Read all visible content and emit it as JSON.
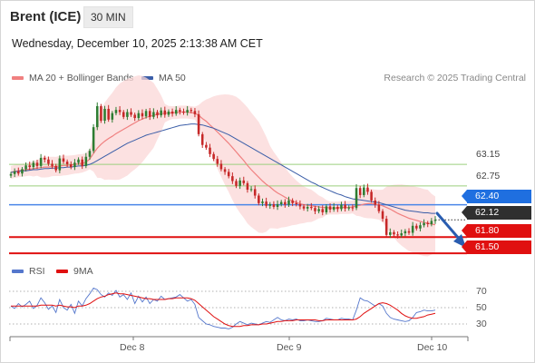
{
  "header": {
    "title": "Brent (ICE)",
    "timeframe": "30 MIN",
    "datetime": "Wednesday, December 10, 2025 2:13:38 AM CET",
    "credit": "Research © 2025 Trading Central"
  },
  "legend": {
    "ma20": "MA 20 + Bollinger Bands",
    "ma50": "MA 50",
    "rsi": "RSI",
    "ma9": "9MA"
  },
  "colors": {
    "ma20": "#f08080",
    "ma50": "#3b5ea8",
    "bands": "#fbd7d7",
    "bull": "#2e7d32",
    "bear": "#c62828",
    "resistance": "#9ccf7e",
    "pivot": "#4a86e8",
    "support": "#e01010",
    "current": "#333333",
    "rsi": "#5577cc",
    "rsi_ma": "#e01010",
    "arrow": "#2a5db0"
  },
  "levels": {
    "r2": "63.15",
    "r1": "62.75",
    "pivot": "62.40",
    "current": "62.12",
    "s1": "61.80",
    "s2": "61.50"
  },
  "chart_data": [
    {
      "type": "candlestick",
      "title": "Brent (ICE) 30 MIN",
      "x_ticks": [
        "Dec 8",
        "Dec 9",
        "Dec 10"
      ],
      "ylim": [
        61.4,
        64.6
      ],
      "series": [
        {
          "name": "Brent (ICE)",
          "close": [
            62.97,
            63.02,
            62.98,
            63.06,
            63.13,
            63.1,
            63.18,
            63.12,
            63.27,
            63.24,
            63.16,
            63.12,
            63.04,
            63.26,
            63.2,
            63.15,
            63.1,
            63.18,
            63.24,
            63.12,
            63.29,
            63.4,
            63.84,
            64.23,
            63.96,
            64.18,
            63.98,
            64.1,
            64.16,
            64.12,
            64.03,
            64.12,
            64.07,
            64.01,
            64.1,
            64.04,
            64.14,
            64.03,
            64.12,
            64.06,
            64.15,
            64.07,
            64.13,
            64.09,
            64.16,
            64.13,
            64.11,
            64.16,
            64.14,
            64.08,
            63.71,
            63.51,
            63.46,
            63.34,
            63.25,
            63.16,
            63.06,
            63.01,
            62.93,
            62.84,
            62.75,
            62.85,
            62.8,
            62.68,
            62.69,
            62.57,
            62.43,
            62.46,
            62.38,
            62.41,
            62.36,
            62.41,
            62.45,
            62.4,
            62.48,
            62.43,
            62.41,
            62.37,
            62.33,
            62.36,
            62.34,
            62.28,
            62.32,
            62.26,
            62.37,
            62.31,
            62.36,
            62.32,
            62.4,
            62.33,
            62.35,
            62.34,
            62.71,
            62.58,
            62.72,
            62.64,
            62.48,
            62.4,
            62.28,
            62.14,
            61.84,
            61.89,
            61.85,
            61.83,
            61.87,
            61.91,
            61.88,
            62.01,
            61.96,
            62.02,
            62.06,
            62.04,
            62.1,
            62.12
          ]
        },
        {
          "name": "MA 20",
          "values": [
            63.0,
            63.02,
            63.03,
            63.04,
            63.05,
            63.06,
            63.07,
            63.08,
            63.09,
            63.1,
            63.1,
            63.11,
            63.11,
            63.12,
            63.13,
            63.13,
            63.14,
            63.15,
            63.16,
            63.17,
            63.19,
            63.25,
            63.35,
            63.45,
            63.52,
            63.58,
            63.63,
            63.67,
            63.72,
            63.76,
            63.8,
            63.84,
            63.88,
            63.92,
            63.96,
            63.99,
            64.02,
            64.04,
            64.06,
            64.08,
            64.09,
            64.1,
            64.1,
            64.11,
            64.11,
            64.12,
            64.12,
            64.12,
            64.11,
            64.1,
            64.06,
            64.0,
            63.95,
            63.88,
            63.82,
            63.75,
            63.68,
            63.61,
            63.54,
            63.46,
            63.38,
            63.3,
            63.22,
            63.13,
            63.05,
            62.98,
            62.91,
            62.84,
            62.78,
            62.73,
            62.67,
            62.62,
            62.58,
            62.54,
            62.5,
            62.47,
            62.44,
            62.42,
            62.4,
            62.39,
            62.38,
            62.37,
            62.36,
            62.35,
            62.35,
            62.34,
            62.34,
            62.34,
            62.35,
            62.35,
            62.35,
            62.36,
            62.38,
            62.39,
            62.41,
            62.42,
            62.42,
            62.41,
            62.4,
            62.38,
            62.35,
            62.32,
            62.28,
            62.24,
            62.21,
            62.18,
            62.15,
            62.13,
            62.11,
            62.09,
            62.07,
            62.06,
            62.04,
            62.03
          ]
        },
        {
          "name": "MA 50",
          "values": [
            63.0,
            63.01,
            63.02,
            63.03,
            63.03,
            63.04,
            63.05,
            63.05,
            63.06,
            63.07,
            63.07,
            63.08,
            63.08,
            63.09,
            63.09,
            63.1,
            63.1,
            63.11,
            63.12,
            63.12,
            63.13,
            63.15,
            63.18,
            63.22,
            63.26,
            63.3,
            63.34,
            63.38,
            63.42,
            63.46,
            63.5,
            63.54,
            63.57,
            63.6,
            63.63,
            63.66,
            63.69,
            63.71,
            63.73,
            63.75,
            63.77,
            63.79,
            63.81,
            63.83,
            63.85,
            63.87,
            63.88,
            63.89,
            63.9,
            63.9,
            63.89,
            63.88,
            63.86,
            63.84,
            63.82,
            63.79,
            63.76,
            63.73,
            63.7,
            63.66,
            63.62,
            63.58,
            63.54,
            63.5,
            63.46,
            63.42,
            63.38,
            63.34,
            63.3,
            63.26,
            63.22,
            63.18,
            63.14,
            63.1,
            63.06,
            63.02,
            62.98,
            62.94,
            62.9,
            62.86,
            62.82,
            62.79,
            62.75,
            62.72,
            62.69,
            62.66,
            62.63,
            62.6,
            62.58,
            62.55,
            62.53,
            62.51,
            62.5,
            62.49,
            62.48,
            62.47,
            62.46,
            62.45,
            62.44,
            62.42,
            62.4,
            62.38,
            62.36,
            62.34,
            62.32,
            62.3,
            62.29,
            62.28,
            62.27,
            62.26,
            62.25,
            62.25,
            62.24,
            62.24
          ]
        }
      ],
      "levels": [
        63.15,
        62.75,
        62.4,
        62.12,
        61.8,
        61.5
      ]
    },
    {
      "type": "line",
      "title": "RSI",
      "y_ticks": [
        70,
        50,
        30
      ],
      "ylim": [
        20,
        80
      ],
      "series": [
        {
          "name": "RSI",
          "values": [
            52,
            49,
            55,
            51,
            54,
            58,
            49,
            53,
            62,
            56,
            48,
            52,
            44,
            60,
            50,
            47,
            54,
            43,
            58,
            52,
            61,
            67,
            74,
            72,
            66,
            63,
            68,
            65,
            71,
            63,
            66,
            60,
            68,
            55,
            64,
            57,
            63,
            55,
            60,
            58,
            64,
            60,
            61,
            62,
            63,
            66,
            62,
            58,
            60,
            54,
            38,
            34,
            30,
            29,
            27,
            26,
            25,
            25,
            24,
            26,
            30,
            33,
            31,
            29,
            31,
            30,
            29,
            31,
            33,
            32,
            35,
            38,
            35,
            34,
            36,
            35,
            36,
            34,
            34,
            35,
            34,
            33,
            33,
            34,
            37,
            36,
            35,
            35,
            37,
            36,
            36,
            35,
            47,
            62,
            59,
            58,
            55,
            52,
            55,
            52,
            43,
            38,
            36,
            35,
            34,
            33,
            34,
            38,
            44,
            45,
            47,
            46,
            46,
            47
          ]
        },
        {
          "name": "9MA",
          "values": [
            52,
            52,
            52,
            52,
            52,
            52,
            52,
            52,
            53,
            53,
            53,
            53,
            52,
            53,
            52,
            51,
            51,
            50,
            52,
            52,
            53,
            55,
            58,
            61,
            63,
            64,
            66,
            67,
            68,
            67,
            67,
            66,
            65,
            64,
            63,
            62,
            61,
            61,
            60,
            60,
            60,
            60,
            61,
            61,
            62,
            62,
            62,
            62,
            61,
            59,
            55,
            51,
            47,
            43,
            39,
            36,
            33,
            30,
            28,
            27,
            27,
            27,
            28,
            28,
            29,
            29,
            29,
            30,
            30,
            31,
            32,
            33,
            33,
            34,
            34,
            34,
            35,
            35,
            35,
            35,
            35,
            35,
            34,
            34,
            35,
            35,
            35,
            35,
            35,
            35,
            35,
            35,
            36,
            39,
            43,
            46,
            49,
            52,
            55,
            56,
            55,
            53,
            50,
            47,
            43,
            40,
            38,
            37,
            37,
            38,
            39,
            41,
            42,
            43
          ]
        }
      ]
    }
  ]
}
